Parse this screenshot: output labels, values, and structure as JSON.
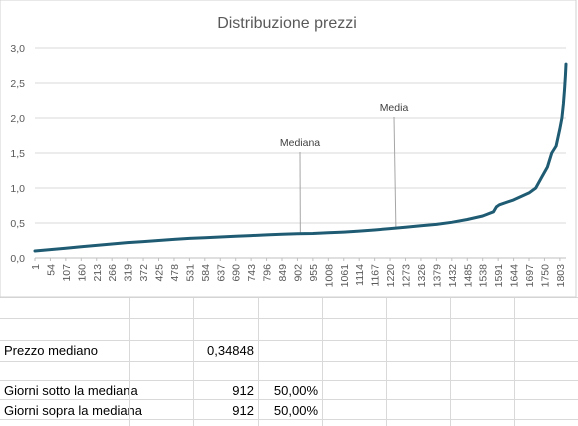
{
  "chart_data": {
    "type": "line",
    "title": "Distribuzione prezzi",
    "xlabel": "",
    "ylabel": "",
    "ylim": [
      0,
      3
    ],
    "y_ticks": [
      "0,0",
      "0,5",
      "1,0",
      "1,5",
      "2,0",
      "2,5",
      "3,0"
    ],
    "x_tick_labels": [
      "1",
      "54",
      "107",
      "160",
      "213",
      "266",
      "319",
      "372",
      "425",
      "478",
      "531",
      "584",
      "637",
      "690",
      "743",
      "796",
      "849",
      "902",
      "955",
      "1008",
      "1061",
      "1114",
      "1167",
      "1220",
      "1273",
      "1326",
      "1379",
      "1432",
      "1485",
      "1538",
      "1591",
      "1644",
      "1697",
      "1750",
      "1803"
    ],
    "xlim": [
      1,
      1824
    ],
    "grid": "horizontal",
    "legend": "none",
    "series": [
      {
        "color": "#1f5c73",
        "x": [
          1,
          54,
          107,
          160,
          213,
          266,
          319,
          372,
          425,
          478,
          531,
          584,
          637,
          690,
          743,
          796,
          849,
          902,
          955,
          1008,
          1061,
          1114,
          1167,
          1220,
          1273,
          1326,
          1379,
          1432,
          1485,
          1538,
          1575,
          1585,
          1595,
          1644,
          1697,
          1720,
          1740,
          1760,
          1775,
          1790,
          1803,
          1810,
          1815,
          1819,
          1822,
          1824
        ],
        "y": [
          0.1,
          0.12,
          0.14,
          0.16,
          0.18,
          0.2,
          0.22,
          0.235,
          0.25,
          0.265,
          0.28,
          0.29,
          0.3,
          0.31,
          0.32,
          0.33,
          0.34,
          0.345,
          0.35,
          0.36,
          0.37,
          0.385,
          0.4,
          0.42,
          0.44,
          0.46,
          0.48,
          0.51,
          0.55,
          0.6,
          0.66,
          0.73,
          0.76,
          0.83,
          0.93,
          1.0,
          1.15,
          1.3,
          1.5,
          1.6,
          1.85,
          2.0,
          2.2,
          2.4,
          2.6,
          2.77
        ]
      }
    ],
    "annotations": [
      {
        "label": "Mediana",
        "x": 912,
        "y": 0.35
      },
      {
        "label": "Media",
        "x": 1240,
        "y": 0.43
      }
    ]
  },
  "sheet": {
    "rows": [
      {
        "label": "Prezzo mediano",
        "value": "0,34848",
        "percent": ""
      },
      {
        "label": "Giorni sotto la mediana",
        "value": "912",
        "percent": "50,00%"
      },
      {
        "label": "Giorni sopra la mediana",
        "value": "912",
        "percent": "50,00%"
      }
    ]
  }
}
